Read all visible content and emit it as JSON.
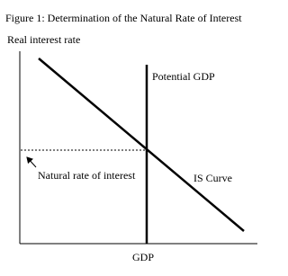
{
  "title": "Figure 1: Determination of the Natural Rate of Interest",
  "y_axis_label": "Real interest rate",
  "x_axis_label": "GDP",
  "labels": {
    "potential_gdp": "Potential GDP",
    "is_curve": "IS Curve",
    "natural_rate": "Natural rate of interest"
  }
}
